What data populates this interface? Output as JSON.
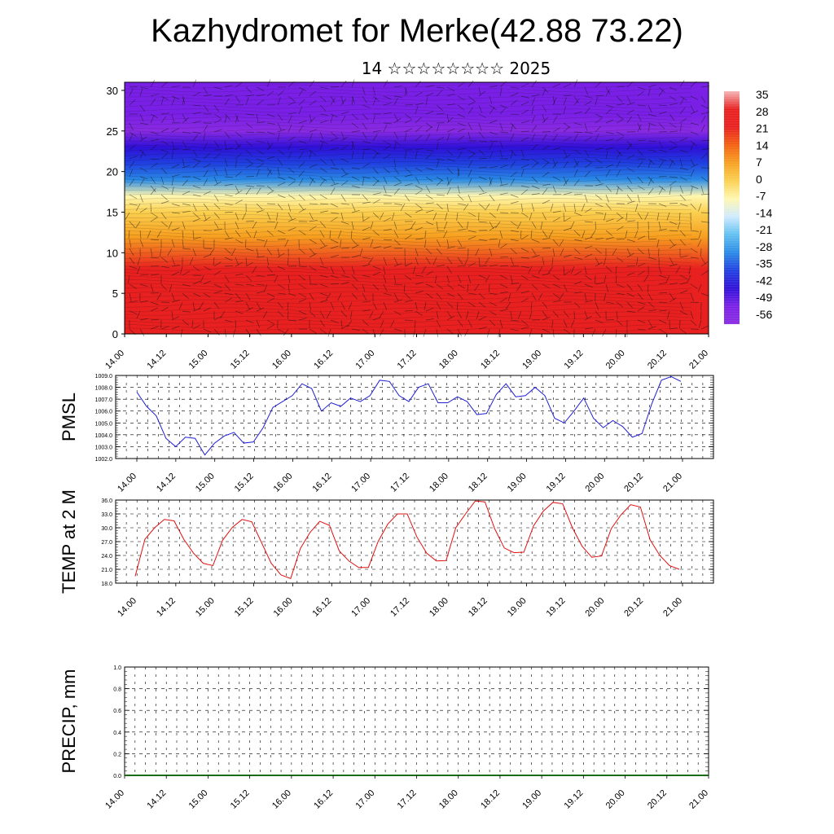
{
  "title": "Kazhydromet for Merke(42.88 73.22)",
  "subtitle": "14 ☆☆☆☆☆☆☆☆ 2025",
  "colors": {
    "pmsl_line": "#1f1fd6",
    "temp_line": "#e01010",
    "precip_line": "#1a6b1a"
  },
  "chart_data": [
    {
      "type": "heatmap",
      "title": "",
      "x_tick_labels": [
        "14.00",
        "14.12",
        "15.00",
        "15.12",
        "16.00",
        "16.12",
        "17.00",
        "17.12",
        "18.00",
        "18.12",
        "19.00",
        "19.12",
        "20.00",
        "20.12",
        "21.00"
      ],
      "y_ticks": [
        0,
        5,
        10,
        15,
        20,
        25,
        30
      ],
      "ylim": [
        0,
        31
      ],
      "colorbar_labels": [
        "35",
        "28",
        "21",
        "14",
        "7",
        "0",
        "-7",
        "-14",
        "-21",
        "-28",
        "-35",
        "-42",
        "-49",
        "-56"
      ],
      "colorbar_stops": [
        "#f5b5b5",
        "#e82020",
        "#e82020",
        "#f36010",
        "#f7a020",
        "#fbd050",
        "#fff7b0",
        "#cfeaff",
        "#60c0f0",
        "#2a8ae6",
        "#2040e0",
        "#3010d8",
        "#7a20e6",
        "#8a2be2"
      ],
      "profile_height_km": [
        0,
        4,
        8,
        12,
        15,
        17,
        19,
        21,
        23,
        25,
        27,
        31
      ],
      "profile_temp_c": [
        30,
        26,
        20,
        10,
        0,
        -10,
        -25,
        -35,
        -45,
        -58,
        -52,
        -50
      ],
      "annotation": "wind barbs overlay"
    },
    {
      "type": "line",
      "ylabel": "PMSL",
      "x_tick_labels": [
        "14.00",
        "14.12",
        "15.00",
        "15.12",
        "16.00",
        "16.12",
        "17.00",
        "17.12",
        "18.00",
        "18.12",
        "19.00",
        "19.12",
        "20.00",
        "20.12",
        "21.00"
      ],
      "y_tick_labels": [
        "1002.0",
        "1003.0",
        "1004.0",
        "1005.0",
        "1006.0",
        "1007.0",
        "1008.0",
        "1009.0"
      ],
      "ylim": [
        1002,
        1009
      ],
      "series": [
        {
          "values": [
            1007.6,
            1006.4,
            1005.6,
            1003.7,
            1003.0,
            1003.8,
            1003.7,
            1002.3,
            1003.3,
            1003.9,
            1004.2,
            1003.3,
            1003.4,
            1004.6,
            1006.3,
            1006.8,
            1007.3,
            1008.3,
            1007.9,
            1006.0,
            1006.7,
            1006.4,
            1007.1,
            1006.8,
            1007.3,
            1008.6,
            1008.5,
            1007.3,
            1006.8,
            1008.0,
            1008.3,
            1006.7,
            1006.7,
            1007.2,
            1006.8,
            1005.7,
            1005.8,
            1007.4,
            1008.3,
            1007.2,
            1007.3,
            1008.0,
            1007.3,
            1005.4,
            1005.0,
            1006.0,
            1007.1,
            1005.4,
            1004.6,
            1005.2,
            1004.7,
            1003.8,
            1004.1,
            1006.6,
            1008.6,
            1008.9,
            1008.5
          ]
        }
      ]
    },
    {
      "type": "line",
      "ylabel": "TEMP at 2 M",
      "x_tick_labels": [
        "14.00",
        "14.12",
        "15.00",
        "15.12",
        "16.00",
        "16.12",
        "17.00",
        "17.12",
        "18.00",
        "18.12",
        "19.00",
        "19.12",
        "20.00",
        "20.12",
        "21.00"
      ],
      "y_tick_labels": [
        "18.0",
        "21.0",
        "24.0",
        "27.0",
        "30.0",
        "33.0",
        "36.0"
      ],
      "ylim": [
        18,
        36
      ],
      "series": [
        {
          "values": [
            19.5,
            27.5,
            30.0,
            31.8,
            31.5,
            27.5,
            24.5,
            22.3,
            21.8,
            27.3,
            30.1,
            31.8,
            31.3,
            26.8,
            22.3,
            19.8,
            19.0,
            25.5,
            29.0,
            31.4,
            30.5,
            25.0,
            22.8,
            21.4,
            21.4,
            27.0,
            30.8,
            33.0,
            33.0,
            28.0,
            24.5,
            22.8,
            22.9,
            30.0,
            33.0,
            35.8,
            35.6,
            29.8,
            25.6,
            24.6,
            24.7,
            30.4,
            33.6,
            35.5,
            35.2,
            30.0,
            26.0,
            23.6,
            23.9,
            29.8,
            32.8,
            35.0,
            34.5,
            27.4,
            24.0,
            21.8,
            21.0
          ]
        }
      ]
    },
    {
      "type": "line",
      "ylabel": "PRECIP, mm",
      "x_tick_labels": [
        "14.00",
        "14.12",
        "15.00",
        "15.12",
        "16.00",
        "16.12",
        "17.00",
        "17.12",
        "18.00",
        "18.12",
        "19.00",
        "19.12",
        "20.00",
        "20.12",
        "21.00"
      ],
      "y_tick_labels": [
        "0.0",
        "0.2",
        "0.4",
        "0.6",
        "0.8",
        "1.0"
      ],
      "ylim": [
        0,
        1
      ],
      "series": [
        {
          "values": [
            0,
            0,
            0,
            0,
            0,
            0,
            0,
            0,
            0,
            0,
            0,
            0,
            0,
            0,
            0,
            0,
            0,
            0,
            0,
            0,
            0,
            0,
            0,
            0,
            0,
            0,
            0,
            0,
            0,
            0,
            0,
            0,
            0,
            0,
            0,
            0,
            0,
            0,
            0,
            0,
            0,
            0,
            0,
            0,
            0,
            0,
            0,
            0,
            0,
            0,
            0,
            0,
            0,
            0,
            0,
            0,
            0
          ]
        }
      ]
    }
  ]
}
